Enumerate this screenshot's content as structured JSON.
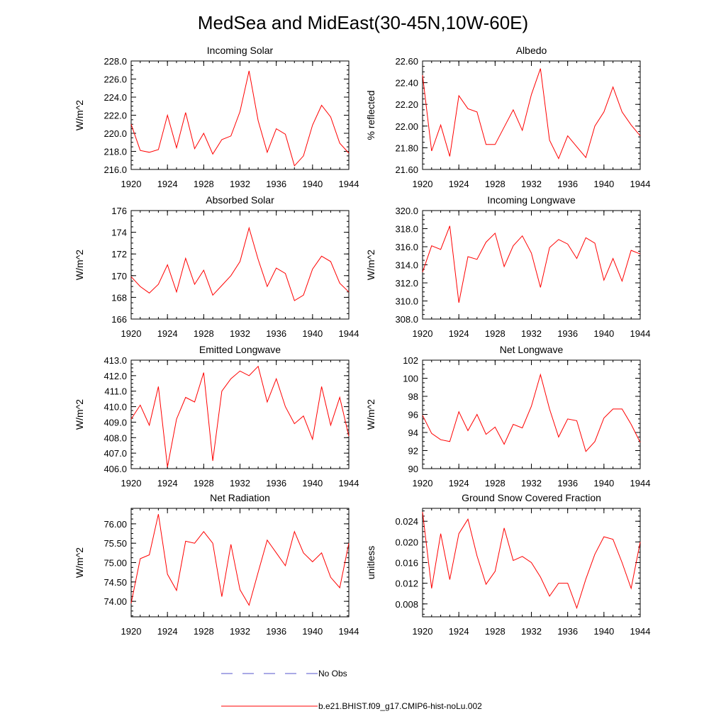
{
  "figure": {
    "title": "MedSea and MidEast(30-45N,10W-60E)"
  },
  "legend": {
    "items": [
      {
        "label": "No Obs",
        "color": "#5555cc",
        "style": "dashed"
      },
      {
        "label": "b.e21.BHIST.f09_g17.CMIP6-hist-noLu.002",
        "color": "#ff0000",
        "style": "solid"
      }
    ]
  },
  "chart_data": [
    {
      "type": "line",
      "title": "Incoming Solar",
      "ylabel": "W/m^2",
      "xlim": [
        1920,
        1944
      ],
      "ylim": [
        216,
        228
      ],
      "yticks": [
        216,
        218,
        220,
        222,
        224,
        226,
        228
      ],
      "ytick_labels": [
        "216.0",
        "218.0",
        "220.0",
        "222.0",
        "224.0",
        "226.0",
        "228.0"
      ],
      "xticks": [
        1920,
        1924,
        1928,
        1932,
        1936,
        1940,
        1944
      ],
      "xtick_labels": [
        "1920",
        "1924",
        "1928",
        "1932",
        "1936",
        "1940",
        "1944"
      ],
      "series": [
        {
          "color": "#ff0000",
          "x": [
            1920,
            1921,
            1922,
            1923,
            1924,
            1925,
            1926,
            1927,
            1928,
            1929,
            1930,
            1931,
            1932,
            1933,
            1934,
            1935,
            1936,
            1937,
            1938,
            1939,
            1940,
            1941,
            1942,
            1943,
            1944
          ],
          "values": [
            221.0,
            218.1,
            217.9,
            218.2,
            222.0,
            218.4,
            222.3,
            218.3,
            220.0,
            217.7,
            219.3,
            219.7,
            222.4,
            226.9,
            221.4,
            217.9,
            220.5,
            219.9,
            216.4,
            217.5,
            220.9,
            223.1,
            221.8,
            218.9,
            217.8
          ]
        }
      ]
    },
    {
      "type": "line",
      "title": "Albedo",
      "ylabel": "% reflected",
      "xlim": [
        1920,
        1944
      ],
      "ylim": [
        21.6,
        22.6
      ],
      "yticks": [
        21.6,
        21.8,
        22.0,
        22.2,
        22.4,
        22.6
      ],
      "ytick_labels": [
        "21.60",
        "21.80",
        "22.00",
        "22.20",
        "22.40",
        "22.60"
      ],
      "xticks": [
        1920,
        1924,
        1928,
        1932,
        1936,
        1940,
        1944
      ],
      "xtick_labels": [
        "1920",
        "1924",
        "1928",
        "1932",
        "1936",
        "1940",
        "1944"
      ],
      "series": [
        {
          "color": "#ff0000",
          "x": [
            1920,
            1921,
            1922,
            1923,
            1924,
            1925,
            1926,
            1927,
            1928,
            1929,
            1930,
            1931,
            1932,
            1933,
            1934,
            1935,
            1936,
            1937,
            1938,
            1939,
            1940,
            1941,
            1942,
            1943,
            1944
          ],
          "values": [
            22.47,
            21.77,
            22.01,
            21.72,
            22.28,
            22.16,
            22.13,
            21.83,
            21.83,
            21.99,
            22.15,
            21.96,
            22.29,
            22.53,
            21.87,
            21.7,
            21.91,
            21.81,
            21.71,
            22.0,
            22.13,
            22.36,
            22.13,
            22.01,
            21.91
          ]
        }
      ]
    },
    {
      "type": "line",
      "title": "Absorbed Solar",
      "ylabel": "W/m^2",
      "xlim": [
        1920,
        1944
      ],
      "ylim": [
        166,
        176
      ],
      "yticks": [
        166,
        168,
        170,
        172,
        174,
        176
      ],
      "ytick_labels": [
        "166",
        "168",
        "170",
        "172",
        "174",
        "176"
      ],
      "xticks": [
        1920,
        1924,
        1928,
        1932,
        1936,
        1940,
        1944
      ],
      "xtick_labels": [
        "1920",
        "1924",
        "1928",
        "1932",
        "1936",
        "1940",
        "1944"
      ],
      "series": [
        {
          "color": "#ff0000",
          "x": [
            1920,
            1921,
            1922,
            1923,
            1924,
            1925,
            1926,
            1927,
            1928,
            1929,
            1930,
            1931,
            1932,
            1933,
            1934,
            1935,
            1936,
            1937,
            1938,
            1939,
            1940,
            1941,
            1942,
            1943,
            1944
          ],
          "values": [
            169.9,
            169.0,
            168.4,
            169.2,
            171.0,
            168.5,
            171.6,
            169.2,
            170.5,
            168.2,
            169.1,
            170.0,
            171.3,
            174.4,
            171.5,
            169.0,
            170.7,
            170.2,
            167.7,
            168.2,
            170.6,
            171.8,
            171.3,
            169.3,
            168.5
          ]
        }
      ]
    },
    {
      "type": "line",
      "title": "Incoming Longwave",
      "ylabel": "W/m^2",
      "xlim": [
        1920,
        1944
      ],
      "ylim": [
        308,
        320
      ],
      "yticks": [
        308,
        310,
        312,
        314,
        316,
        318,
        320
      ],
      "ytick_labels": [
        "308.0",
        "310.0",
        "312.0",
        "314.0",
        "316.0",
        "318.0",
        "320.0"
      ],
      "xticks": [
        1920,
        1924,
        1928,
        1932,
        1936,
        1940,
        1944
      ],
      "xtick_labels": [
        "1920",
        "1924",
        "1928",
        "1932",
        "1936",
        "1940",
        "1944"
      ],
      "series": [
        {
          "color": "#ff0000",
          "x": [
            1920,
            1921,
            1922,
            1923,
            1924,
            1925,
            1926,
            1927,
            1928,
            1929,
            1930,
            1931,
            1932,
            1933,
            1934,
            1935,
            1936,
            1937,
            1938,
            1939,
            1940,
            1941,
            1942,
            1943,
            1944
          ],
          "values": [
            313.2,
            316.1,
            315.7,
            318.3,
            309.8,
            314.9,
            314.6,
            316.5,
            317.5,
            313.8,
            316.1,
            317.2,
            315.3,
            311.5,
            315.9,
            316.8,
            316.3,
            314.7,
            317.0,
            316.4,
            312.3,
            314.7,
            312.2,
            315.6,
            315.2
          ]
        }
      ]
    },
    {
      "type": "line",
      "title": "Emitted Longwave",
      "ylabel": "W/m^2",
      "xlim": [
        1920,
        1944
      ],
      "ylim": [
        406,
        413
      ],
      "yticks": [
        406,
        407,
        408,
        409,
        410,
        411,
        412,
        413
      ],
      "ytick_labels": [
        "406.0",
        "407.0",
        "408.0",
        "409.0",
        "410.0",
        "411.0",
        "412.0",
        "413.0"
      ],
      "xticks": [
        1920,
        1924,
        1928,
        1932,
        1936,
        1940,
        1944
      ],
      "xtick_labels": [
        "1920",
        "1924",
        "1928",
        "1932",
        "1936",
        "1940",
        "1944"
      ],
      "series": [
        {
          "color": "#ff0000",
          "x": [
            1920,
            1921,
            1922,
            1923,
            1924,
            1925,
            1926,
            1927,
            1928,
            1929,
            1930,
            1931,
            1932,
            1933,
            1934,
            1935,
            1936,
            1937,
            1938,
            1939,
            1940,
            1941,
            1942,
            1943,
            1944
          ],
          "values": [
            409.2,
            410.1,
            408.8,
            411.3,
            406.1,
            409.2,
            410.6,
            410.3,
            412.2,
            406.5,
            411.0,
            411.8,
            412.3,
            412.0,
            412.6,
            410.3,
            411.8,
            410.0,
            408.9,
            409.4,
            407.9,
            411.3,
            408.8,
            410.6,
            408.1
          ]
        }
      ]
    },
    {
      "type": "line",
      "title": "Net Longwave",
      "ylabel": "W/m^2",
      "xlim": [
        1920,
        1944
      ],
      "ylim": [
        90,
        102
      ],
      "yticks": [
        90,
        92,
        94,
        96,
        98,
        100,
        102
      ],
      "ytick_labels": [
        "90",
        "92",
        "94",
        "96",
        "98",
        "100",
        "102"
      ],
      "xticks": [
        1920,
        1924,
        1928,
        1932,
        1936,
        1940,
        1944
      ],
      "xtick_labels": [
        "1920",
        "1924",
        "1928",
        "1932",
        "1936",
        "1940",
        "1944"
      ],
      "series": [
        {
          "color": "#ff0000",
          "x": [
            1920,
            1921,
            1922,
            1923,
            1924,
            1925,
            1926,
            1927,
            1928,
            1929,
            1930,
            1931,
            1932,
            1933,
            1934,
            1935,
            1936,
            1937,
            1938,
            1939,
            1940,
            1941,
            1942,
            1943,
            1944
          ],
          "values": [
            95.9,
            93.9,
            93.2,
            93.0,
            96.3,
            94.2,
            96.0,
            93.8,
            94.6,
            92.7,
            94.9,
            94.5,
            96.9,
            100.4,
            96.6,
            93.5,
            95.5,
            95.3,
            91.9,
            93.0,
            95.6,
            96.6,
            96.6,
            94.9,
            92.9
          ]
        }
      ]
    },
    {
      "type": "line",
      "title": "Net Radiation",
      "ylabel": "W/m^2",
      "xlim": [
        1920,
        1944
      ],
      "ylim": [
        73.6,
        76.4
      ],
      "yticks": [
        74.0,
        74.5,
        75.0,
        75.5,
        76.0
      ],
      "ytick_labels": [
        "74.00",
        "74.50",
        "75.00",
        "75.50",
        "76.00"
      ],
      "xticks": [
        1920,
        1924,
        1928,
        1932,
        1936,
        1940,
        1944
      ],
      "xtick_labels": [
        "1920",
        "1924",
        "1928",
        "1932",
        "1936",
        "1940",
        "1944"
      ],
      "series": [
        {
          "color": "#ff0000",
          "x": [
            1920,
            1921,
            1922,
            1923,
            1924,
            1925,
            1926,
            1927,
            1928,
            1929,
            1930,
            1931,
            1932,
            1933,
            1934,
            1935,
            1936,
            1937,
            1938,
            1939,
            1940,
            1941,
            1942,
            1943,
            1944
          ],
          "values": [
            73.95,
            75.1,
            75.2,
            76.25,
            74.7,
            74.28,
            75.55,
            75.5,
            75.8,
            75.5,
            74.12,
            75.47,
            74.3,
            73.9,
            74.75,
            75.58,
            75.25,
            74.92,
            75.8,
            75.25,
            75.02,
            75.25,
            74.62,
            74.35,
            75.5
          ]
        }
      ]
    },
    {
      "type": "line",
      "title": "Ground Snow Covered Fraction",
      "ylabel": "unitless",
      "xlim": [
        1920,
        1944
      ],
      "ylim": [
        0.0055,
        0.0265
      ],
      "yticks": [
        0.008,
        0.012,
        0.016,
        0.02,
        0.024
      ],
      "ytick_labels": [
        "0.008",
        "0.012",
        "0.016",
        "0.020",
        "0.024"
      ],
      "xticks": [
        1920,
        1924,
        1928,
        1932,
        1936,
        1940,
        1944
      ],
      "xtick_labels": [
        "1920",
        "1924",
        "1928",
        "1932",
        "1936",
        "1940",
        "1944"
      ],
      "series": [
        {
          "color": "#ff0000",
          "x": [
            1920,
            1921,
            1922,
            1923,
            1924,
            1925,
            1926,
            1927,
            1928,
            1929,
            1930,
            1931,
            1932,
            1933,
            1934,
            1935,
            1936,
            1937,
            1938,
            1939,
            1940,
            1941,
            1942,
            1943,
            1944
          ],
          "values": [
            0.0258,
            0.011,
            0.0216,
            0.0127,
            0.0216,
            0.0244,
            0.0173,
            0.0118,
            0.0143,
            0.0227,
            0.0164,
            0.0172,
            0.016,
            0.0132,
            0.0095,
            0.012,
            0.012,
            0.0072,
            0.0128,
            0.0176,
            0.021,
            0.0205,
            0.016,
            0.011,
            0.02
          ]
        }
      ]
    }
  ]
}
